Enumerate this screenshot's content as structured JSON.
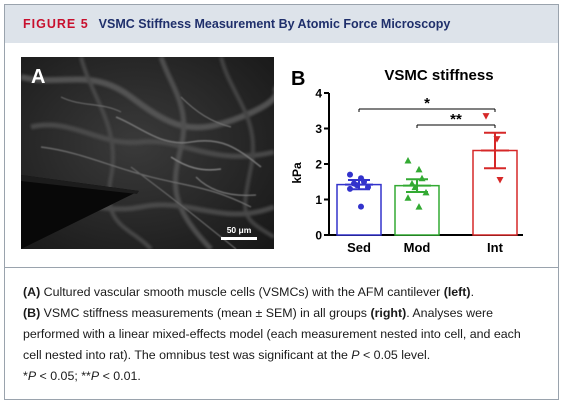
{
  "header": {
    "label": "FIGURE 5",
    "title": "VSMC Stiffness Measurement By Atomic Force Microscopy"
  },
  "panel_a": {
    "letter": "A",
    "scale_bar_label": "50 μm"
  },
  "panel_b": {
    "letter": "B"
  },
  "chart_data": {
    "type": "bar",
    "title": "VSMC stiffness",
    "ylabel": "kPa",
    "xlabel": "",
    "ylim": [
      0,
      4
    ],
    "yticks": [
      "0",
      "1",
      "2",
      "3",
      "4"
    ],
    "categories": [
      "Sed",
      "Mod",
      "Int"
    ],
    "values": [
      1.42,
      1.39,
      2.38
    ],
    "sem": [
      0.13,
      0.18,
      0.5
    ],
    "colors": [
      "#3333cc",
      "#33aa33",
      "#d62828"
    ],
    "points": [
      [
        1.7,
        1.6,
        1.5,
        1.45,
        1.4,
        1.35,
        1.3,
        0.8
      ],
      [
        2.1,
        1.85,
        1.6,
        1.45,
        1.35,
        1.2,
        1.05,
        0.8
      ],
      [
        3.35,
        2.7,
        1.55
      ]
    ],
    "markers": [
      "circle",
      "triangle-up",
      "triangle-down"
    ],
    "significance": [
      {
        "from": "Sed",
        "to": "Int",
        "label": "*"
      },
      {
        "from": "Mod",
        "to": "Int",
        "label": "**"
      }
    ]
  },
  "caption": {
    "line1_a": "(A)",
    "line1_text": " Cultured vascular smooth muscle cells (VSMCs) with the AFM cantilever ",
    "line1_bold": "(left)",
    "line1_end": ".",
    "line2_b": "(B)",
    "line2_text": " VSMC stiffness measurements (mean ± SEM) in all groups ",
    "line2_bold": "(right)",
    "line2_end": ". Analyses were performed with a linear mixed-effects model (each measurement nested into cell, and each cell nested into rat). The omnibus test was significant at the ",
    "p_italic": "P",
    "line2_level": " < 0.05 level.",
    "sig1_star": "*",
    "sig1_p": "P",
    "sig1_text": " < 0.05; **",
    "sig2_p": "P",
    "sig2_text": " < 0.01."
  }
}
